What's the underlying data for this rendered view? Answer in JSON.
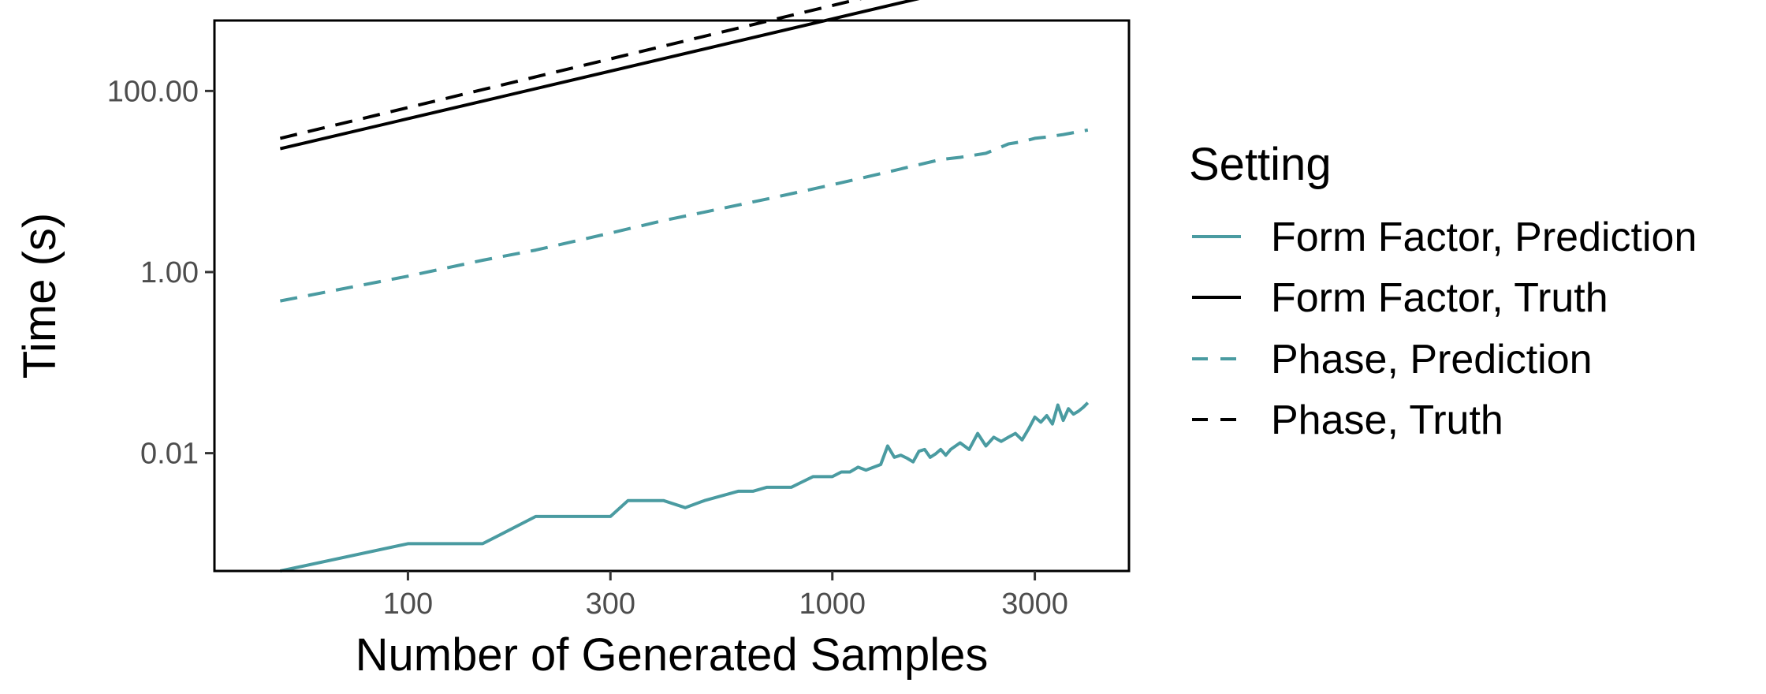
{
  "chart_data": {
    "type": "line",
    "xlabel": "Number of Generated Samples",
    "ylabel": "Time (s)",
    "x_scale": "log10",
    "y_scale": "log10",
    "xlim": [
      35,
      5000
    ],
    "ylim": [
      0.0005,
      600
    ],
    "x_ticks": [
      100,
      300,
      1000,
      3000
    ],
    "x_tick_labels": [
      "100",
      "300",
      "1000",
      "3000"
    ],
    "y_ticks": [
      0.01,
      1,
      100
    ],
    "y_tick_labels": [
      "0.01",
      "1.00",
      "100.00"
    ],
    "grid": false,
    "legend": {
      "title": "Setting",
      "position": "right",
      "entries": [
        {
          "label": "Form Factor, Prediction",
          "color": "#4a9ba1",
          "dash": "solid"
        },
        {
          "label": "Form Factor, Truth",
          "color": "#000000",
          "dash": "solid"
        },
        {
          "label": "Phase, Prediction",
          "color": "#4a9ba1",
          "dash": "dashed"
        },
        {
          "label": "Phase, Truth",
          "color": "#000000",
          "dash": "dashed"
        }
      ]
    },
    "series": [
      {
        "name": "Form Factor, Prediction",
        "color": "#4a9ba1",
        "dash": "solid",
        "x": [
          50,
          100,
          150,
          200,
          300,
          330,
          400,
          450,
          500,
          600,
          650,
          700,
          800,
          900,
          1000,
          1050,
          1100,
          1150,
          1200,
          1300,
          1350,
          1400,
          1450,
          1500,
          1550,
          1600,
          1650,
          1700,
          1750,
          1800,
          1850,
          1900,
          2000,
          2100,
          2200,
          2300,
          2400,
          2500,
          2600,
          2700,
          2800,
          2900,
          3000,
          3100,
          3200,
          3300,
          3400,
          3500,
          3600,
          3700,
          3800,
          3900,
          4000
        ],
        "y": [
          0.0005,
          0.001,
          0.001,
          0.002,
          0.002,
          0.003,
          0.003,
          0.0025,
          0.003,
          0.0038,
          0.0038,
          0.0042,
          0.0042,
          0.0055,
          0.0055,
          0.0062,
          0.0062,
          0.007,
          0.0065,
          0.0075,
          0.012,
          0.009,
          0.0095,
          0.0088,
          0.008,
          0.0105,
          0.011,
          0.009,
          0.0098,
          0.011,
          0.0095,
          0.011,
          0.013,
          0.011,
          0.0165,
          0.012,
          0.015,
          0.0135,
          0.015,
          0.0165,
          0.014,
          0.0185,
          0.025,
          0.022,
          0.026,
          0.021,
          0.034,
          0.023,
          0.031,
          0.027,
          0.029,
          0.032,
          0.036
        ]
      },
      {
        "name": "Form Factor, Truth",
        "color": "#000000",
        "dash": "solid",
        "x": [
          50,
          4000
        ],
        "y": [
          23,
          2880
        ]
      },
      {
        "name": "Phase, Prediction",
        "color": "#4a9ba1",
        "dash": "dashed",
        "x": [
          50,
          100,
          150,
          200,
          300,
          400,
          500,
          700,
          1000,
          1300,
          1800,
          2000,
          2300,
          2600,
          2800,
          3000,
          3200,
          3500,
          4000
        ],
        "y": [
          0.48,
          0.9,
          1.35,
          1.75,
          2.7,
          3.7,
          4.6,
          6.4,
          9.2,
          12.2,
          17.5,
          18.5,
          20.5,
          26,
          27.5,
          30,
          31,
          33,
          37
        ]
      },
      {
        "name": "Phase, Truth",
        "color": "#000000",
        "dash": "dashed",
        "x": [
          50,
          4000
        ],
        "y": [
          30,
          4200
        ]
      }
    ]
  }
}
